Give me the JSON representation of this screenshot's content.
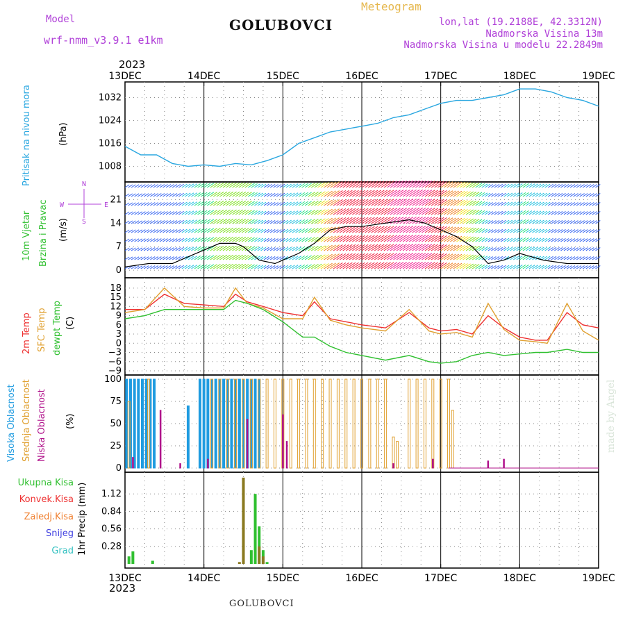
{
  "header": {
    "model_label": "Model",
    "model_name": "wrf-nmm_v3.9.1 e1km",
    "product": "Meteogram",
    "station": "GOLUBOVCI",
    "coords": "lon,lat (19.2188E, 42.3312N)",
    "elevation": "Nadmorska Visina 13m",
    "model_elevation": "Nadmorska Visina u modelu 22.2849m",
    "year_top": "2023",
    "year_bottom": "2023",
    "footer_station": "GOLUBOVCI",
    "credit": "made by Angel"
  },
  "colors": {
    "pressure": "#2aa7e0",
    "temp2m": "#ee3030",
    "sfc": "#e0a030",
    "dewpt": "#30c030",
    "high_cloud": "#1e9be0",
    "mid_cloud": "#e0a030",
    "low_cloud": "#b0108a",
    "total_rain": "#30c030",
    "convective": "#ee3030",
    "frozen": "#f08030",
    "snow": "#4040e0",
    "hail": "#30c0c0",
    "precip_bar": "#8a7a20"
  },
  "axes": {
    "x_ticks": [
      "13DEC",
      "14DEC",
      "15DEC",
      "16DEC",
      "17DEC",
      "18DEC",
      "19DEC"
    ]
  },
  "panels": {
    "pressure": {
      "label1": "Pritisak na nivou mora",
      "label2": "(hPa)"
    },
    "wind": {
      "label1": "10m Vjetar",
      "label2": "Brzina i Pravac",
      "label3": "(m/s)",
      "compass_n": "N",
      "compass_s": "S",
      "compass_e": "E",
      "compass_w": "W"
    },
    "temp": {
      "label_2m": "2m Temp",
      "label_sfc": "SFC Temp",
      "label_dew": "dewpt Temp",
      "unit": "(C)"
    },
    "cloud": {
      "label_high": "Visoka Oblacnost",
      "label_mid": "Srednja Oblacnost",
      "label_low": "Niska Oblacnost",
      "unit": "(%)"
    },
    "precip": {
      "leg_total": "Ukupna Kisa",
      "leg_conv": "Konvek.Kisa",
      "leg_frozen": "Zaledj.Kisa",
      "leg_snow": "Snijeg",
      "leg_hail": "Grad",
      "ylabel": "1hr Precip (mm)"
    }
  },
  "chart_data": [
    {
      "type": "line",
      "title": "",
      "ylabel": "(hPa)",
      "ylim": [
        1004,
        1036
      ],
      "yticks": [
        1008,
        1016,
        1024,
        1032
      ],
      "x_unit": "days from 13DEC 00",
      "xlim": [
        0,
        6
      ],
      "series": [
        {
          "name": "Pritisak na nivou mora",
          "x": [
            0,
            0.2,
            0.4,
            0.6,
            0.8,
            1.0,
            1.2,
            1.4,
            1.6,
            1.8,
            2.0,
            2.2,
            2.4,
            2.6,
            2.8,
            3.0,
            3.2,
            3.4,
            3.6,
            3.8,
            4.0,
            4.2,
            4.4,
            4.6,
            4.8,
            5.0,
            5.2,
            5.4,
            5.6,
            5.8,
            6.0
          ],
          "values": [
            1015,
            1012,
            1012,
            1009,
            1008,
            1008.5,
            1008,
            1009,
            1008.5,
            1010,
            1012,
            1016,
            1018,
            1020,
            1021,
            1022,
            1023,
            1025,
            1026,
            1028,
            1030,
            1031,
            1031,
            1032,
            1033,
            1035,
            1035,
            1034,
            1032,
            1031,
            1029
          ]
        }
      ]
    },
    {
      "type": "line",
      "title": "",
      "ylabel": "(m/s)",
      "ylim": [
        -1,
        25
      ],
      "yticks": [
        0,
        7,
        14,
        21
      ],
      "series": [
        {
          "name": "10m Vjetar",
          "x": [
            0,
            0.3,
            0.6,
            0.9,
            1.2,
            1.4,
            1.5,
            1.7,
            1.9,
            2.0,
            2.2,
            2.4,
            2.6,
            2.8,
            3.0,
            3.3,
            3.6,
            3.8,
            4.0,
            4.2,
            4.4,
            4.6,
            4.8,
            5.0,
            5.3,
            5.6,
            6.0
          ],
          "values": [
            1,
            2,
            2,
            5,
            8,
            8,
            7,
            3,
            2,
            3,
            5,
            8,
            12,
            13,
            13,
            14,
            15,
            14,
            12,
            10,
            7,
            2,
            3,
            5,
            3,
            2,
            2
          ]
        }
      ]
    },
    {
      "type": "line",
      "title": "",
      "ylabel": "(C)",
      "ylim": [
        -9,
        20
      ],
      "yticks": [
        -9,
        -6,
        -3,
        0,
        3,
        6,
        9,
        12,
        15,
        18
      ],
      "x": [
        0,
        0.25,
        0.5,
        0.75,
        1.0,
        1.25,
        1.4,
        1.55,
        1.75,
        2.0,
        2.25,
        2.4,
        2.6,
        2.8,
        3.0,
        3.3,
        3.6,
        3.85,
        4.0,
        4.2,
        4.4,
        4.6,
        4.8,
        5.0,
        5.2,
        5.35,
        5.6,
        5.8,
        6.0
      ],
      "series": [
        {
          "name": "2m Temp",
          "values": [
            11,
            11,
            16,
            13,
            12.5,
            12,
            16,
            13.5,
            12,
            10,
            9,
            13.5,
            8,
            7,
            6,
            5,
            10,
            5,
            4,
            4.5,
            3,
            9,
            5,
            2,
            1,
            1,
            10,
            6,
            5
          ]
        },
        {
          "name": "SFC Temp",
          "values": [
            10,
            11,
            18,
            12,
            11.5,
            11.5,
            18,
            13,
            11.5,
            8,
            8,
            15,
            7.5,
            6,
            5,
            4,
            11,
            4,
            3,
            3.5,
            2,
            13,
            4.5,
            1,
            0.5,
            0,
            13,
            4,
            1
          ]
        },
        {
          "name": "dewpt Temp",
          "values": [
            8,
            9,
            11,
            11,
            11,
            11,
            14,
            13,
            11,
            7,
            2,
            2,
            -1,
            -3,
            -4,
            -5.5,
            -4,
            -6,
            -6.5,
            -6,
            -4,
            -3,
            -4,
            -3.5,
            -3,
            -3,
            -2,
            -3,
            -3
          ]
        }
      ]
    },
    {
      "type": "bar",
      "title": "",
      "ylabel": "(%)",
      "ylim": [
        0,
        100
      ],
      "yticks": [
        0,
        25,
        50,
        75,
        100
      ],
      "series": [
        {
          "name": "Visoka Oblacnost",
          "x": [
            0.02,
            0.07,
            0.12,
            0.17,
            0.22,
            0.27,
            0.32,
            0.37,
            0.8,
            0.95,
            1.0,
            1.05,
            1.1,
            1.15,
            1.2,
            1.25,
            1.3,
            1.35,
            1.4,
            1.45,
            1.5,
            1.55,
            1.6,
            1.65,
            1.7
          ],
          "values": [
            100,
            100,
            100,
            100,
            100,
            100,
            100,
            100,
            70,
            100,
            100,
            100,
            100,
            100,
            100,
            100,
            100,
            100,
            100,
            100,
            100,
            100,
            100,
            100,
            100
          ]
        },
        {
          "name": "Srednja Oblacnost",
          "x": [
            0.05,
            0.3,
            1.1,
            1.2,
            1.3,
            1.4,
            1.5,
            1.6,
            1.7,
            1.8,
            1.9,
            2.0,
            2.1,
            2.2,
            2.3,
            2.4,
            2.5,
            2.6,
            2.7,
            2.8,
            2.9,
            3.0,
            3.1,
            3.2,
            3.3,
            3.4,
            3.45,
            3.6,
            3.7,
            3.8,
            3.9,
            4.0,
            4.1,
            4.15
          ],
          "values": [
            75,
            100,
            100,
            100,
            100,
            100,
            100,
            100,
            100,
            100,
            100,
            100,
            100,
            100,
            100,
            100,
            100,
            100,
            100,
            100,
            100,
            100,
            100,
            100,
            100,
            35,
            30,
            100,
            100,
            100,
            100,
            100,
            100,
            65
          ]
        },
        {
          "name": "Niska Oblacnost",
          "x": [
            0.1,
            0.45,
            0.7,
            1.05,
            1.55,
            2.0,
            2.05,
            3.4,
            3.9,
            4.6,
            4.8
          ],
          "values": [
            12,
            65,
            5,
            10,
            55,
            60,
            30,
            5,
            10,
            8,
            10
          ]
        }
      ]
    },
    {
      "type": "bar",
      "title": "",
      "ylabel": "1hr Precip (mm)",
      "ylim": [
        0,
        1.4
      ],
      "yticks": [
        0.28,
        0.56,
        0.84,
        1.12
      ],
      "series": [
        {
          "name": "Ukupna Kisa",
          "x": [
            0.05,
            0.1,
            0.35,
            1.5,
            1.6,
            1.65,
            1.7,
            1.75,
            1.8
          ],
          "values": [
            0.12,
            0.2,
            0.05,
            0.05,
            0.22,
            1.12,
            0.6,
            0.22,
            0.03
          ]
        },
        {
          "name": "1hr Precip",
          "x": [
            1.45,
            1.5,
            1.7,
            1.75
          ],
          "values": [
            0.03,
            1.38,
            0.28,
            0.12
          ]
        }
      ]
    }
  ]
}
